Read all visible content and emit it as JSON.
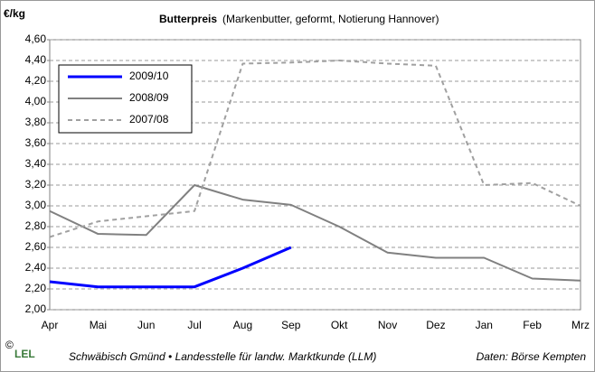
{
  "chart_data": {
    "type": "line",
    "title": "Butterpreis",
    "subtitle": "(Markenbutter, geformt, Notierung Hannover)",
    "y_label": "€/kg",
    "categories": [
      "Apr",
      "Mai",
      "Jun",
      "Jul",
      "Aug",
      "Sep",
      "Okt",
      "Nov",
      "Dez",
      "Jan",
      "Feb",
      "Mrz"
    ],
    "series": [
      {
        "name": "2009/10",
        "color": "#0000ff",
        "values": [
          2.27,
          2.22,
          2.22,
          2.22,
          2.4,
          2.6,
          null,
          null,
          null,
          null,
          null,
          null
        ]
      },
      {
        "name": "2008/09",
        "color": "#808080",
        "values": [
          2.95,
          2.73,
          2.72,
          3.2,
          3.06,
          3.01,
          2.8,
          2.55,
          2.5,
          2.5,
          2.3,
          2.28
        ]
      },
      {
        "name": "2007/08",
        "color": "#a0a0a0",
        "dashed": true,
        "values": [
          2.7,
          2.85,
          2.9,
          2.95,
          4.37,
          4.38,
          4.4,
          4.37,
          4.35,
          3.2,
          3.22,
          3.0
        ]
      }
    ],
    "ylim": [
      2.0,
      4.6
    ],
    "yticks": [
      {
        "value": 2.0,
        "label": "2,00"
      },
      {
        "value": 2.2,
        "label": "2,20"
      },
      {
        "value": 2.4,
        "label": "2,40"
      },
      {
        "value": 2.6,
        "label": "2,60"
      },
      {
        "value": 2.8,
        "label": "2,80"
      },
      {
        "value": 3.0,
        "label": "3,00"
      },
      {
        "value": 3.2,
        "label": "3,20"
      },
      {
        "value": 3.4,
        "label": "3,40"
      },
      {
        "value": 3.6,
        "label": "3,60"
      },
      {
        "value": 3.8,
        "label": "3,80"
      },
      {
        "value": 4.0,
        "label": "4,00"
      },
      {
        "value": 4.2,
        "label": "4,20"
      },
      {
        "value": 4.4,
        "label": "4,40"
      },
      {
        "value": 4.6,
        "label": "4,60"
      }
    ],
    "grid": true,
    "legend": "top-left"
  },
  "footer": {
    "logo": "LEL",
    "copyright": "©",
    "institution": "Schwäbisch Gmünd • Landesstelle für landw. Marktkunde (LLM)",
    "source": "Daten: Börse Kempten"
  }
}
